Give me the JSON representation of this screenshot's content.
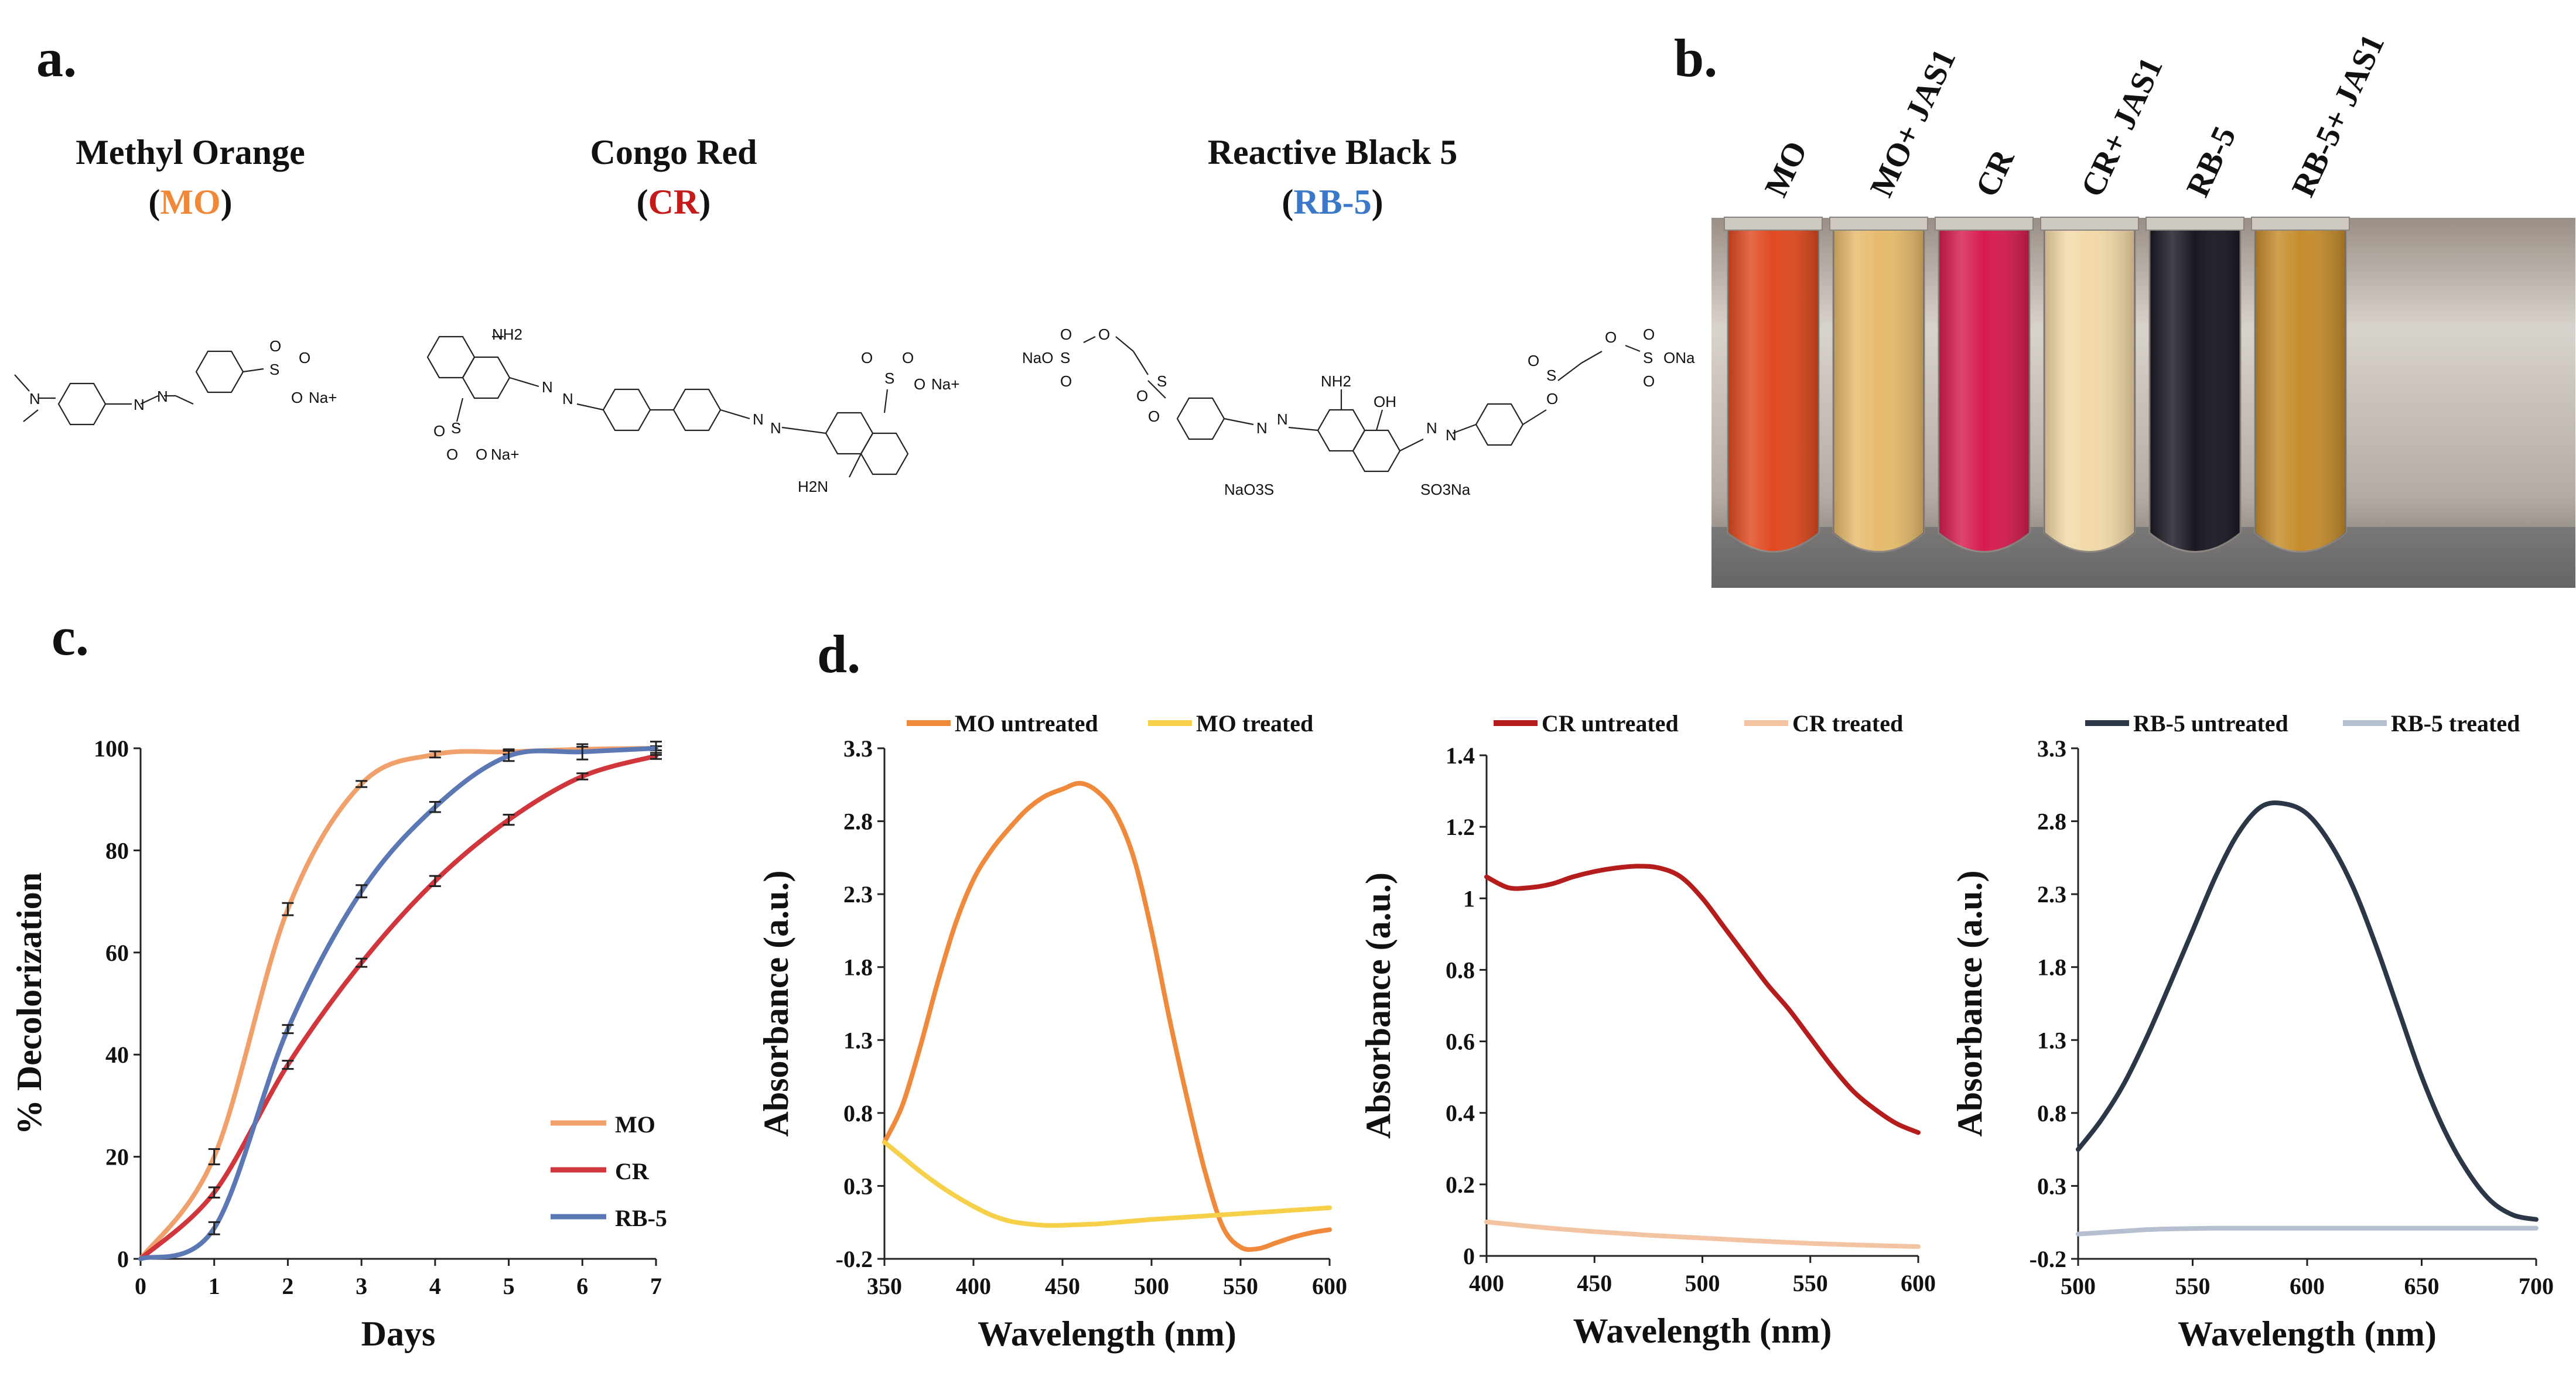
{
  "panel_labels": {
    "a": "a.",
    "b": "b.",
    "c": "c.",
    "d": "d."
  },
  "dyes": [
    {
      "name": "Methyl Orange",
      "abbr": "MO",
      "color": "#f0883a"
    },
    {
      "name": "Congo Red",
      "abbr": "CR",
      "color": "#c41a1a"
    },
    {
      "name": "Reactive Black 5",
      "abbr": "RB-5",
      "color": "#3c78c8"
    }
  ],
  "chem_atoms": {
    "mo": [
      "N",
      "N",
      "N",
      "S",
      "O",
      "O",
      "O",
      "Na+"
    ],
    "cr": [
      "NH2",
      "N",
      "N",
      "N",
      "N",
      "S",
      "O",
      "O",
      "O",
      "Na+",
      "S",
      "O",
      "O",
      "O",
      "Na+",
      "H2N"
    ],
    "rb5": [
      "NaO",
      "S",
      "O",
      "O",
      "O",
      "S",
      "O",
      "O",
      "N",
      "N",
      "NH2",
      "OH",
      "N",
      "N",
      "NaO3S",
      "SO3Na",
      "S",
      "O",
      "O",
      "O",
      "S",
      "O",
      "O",
      "ONa"
    ]
  },
  "tubes": [
    {
      "label": "MO",
      "label_color": "#f0883a",
      "fill_color": "#e0491f"
    },
    {
      "label": "MO+ JAS1",
      "label_color": "#f0883a",
      "fill_color": "#e6bb6c"
    },
    {
      "label": "CR",
      "label_color": "#c41a1a",
      "fill_color": "#d61c4f"
    },
    {
      "label": "CR+ JAS1",
      "label_color": "#c41a1a",
      "fill_color": "#f2d9a8"
    },
    {
      "label": "RB-5",
      "label_color": "#3c78c8",
      "fill_color": "#1a1822"
    },
    {
      "label": "RB-5+ JAS1",
      "label_color": "#3c78c8",
      "fill_color": "#c58c2c"
    }
  ],
  "chart_data": [
    {
      "type": "line",
      "panel": "c",
      "xlabel": "Days",
      "ylabel": "% Decolorization",
      "xlim": [
        0,
        7
      ],
      "ylim": [
        0,
        100
      ],
      "xticks": [
        "0",
        "1",
        "2",
        "3",
        "4",
        "5",
        "6",
        "7"
      ],
      "yticks": [
        "0",
        "20",
        "40",
        "60",
        "80",
        "100"
      ],
      "legend_position": "bottom-right",
      "x": [
        0,
        1,
        2,
        3,
        4,
        5,
        6,
        7
      ],
      "series": [
        {
          "name": "MO",
          "color": "#f0a06a",
          "values": [
            0,
            20,
            68.5,
            93,
            98.8,
            99.3,
            99.8,
            100
          ],
          "errors": [
            0,
            1.5,
            1.2,
            0.6,
            0.6,
            0.5,
            0.5,
            0.4
          ]
        },
        {
          "name": "CR",
          "color": "#d0363c",
          "values": [
            0,
            13,
            38,
            58,
            74,
            86,
            94.5,
            98.5
          ],
          "errors": [
            0,
            1.0,
            0.8,
            0.8,
            1.0,
            1.0,
            0.6,
            0.6
          ]
        },
        {
          "name": "RB-5",
          "color": "#5b78b4",
          "values": [
            0,
            6,
            45,
            72,
            88.5,
            98.5,
            99.3,
            100
          ],
          "errors": [
            0,
            1.2,
            0.8,
            1.2,
            1.0,
            1.0,
            1.5,
            1.3
          ]
        }
      ]
    },
    {
      "type": "line",
      "panel": "d-MO",
      "xlabel": "Wavelength (nm)",
      "ylabel": "Absorbance (a.u.)",
      "xlim": [
        350,
        600
      ],
      "ylim": [
        -0.2,
        3.3
      ],
      "xticks": [
        "350",
        "400",
        "450",
        "500",
        "550",
        "600"
      ],
      "yticks": [
        "-0.2",
        "0.3",
        "0.8",
        "1.3",
        "1.8",
        "2.3",
        "2.8",
        "3.3"
      ],
      "legend_position": "top",
      "series": [
        {
          "name": "MO untreated",
          "color": "#ef8a3c",
          "x": [
            350,
            360,
            370,
            380,
            390,
            400,
            410,
            420,
            430,
            440,
            450,
            460,
            470,
            480,
            490,
            500,
            510,
            520,
            530,
            540,
            550,
            560,
            570,
            580,
            590,
            600
          ],
          "values": [
            0.6,
            0.85,
            1.25,
            1.7,
            2.1,
            2.4,
            2.6,
            2.75,
            2.88,
            2.97,
            3.02,
            3.06,
            3.0,
            2.85,
            2.55,
            2.05,
            1.45,
            0.9,
            0.4,
            0.02,
            -0.12,
            -0.13,
            -0.09,
            -0.05,
            -0.02,
            0.0
          ]
        },
        {
          "name": "MO treated",
          "color": "#f7d04a",
          "x": [
            350,
            360,
            370,
            380,
            390,
            400,
            410,
            420,
            430,
            440,
            450,
            460,
            470,
            480,
            490,
            500,
            525,
            550,
            575,
            600
          ],
          "values": [
            0.6,
            0.5,
            0.4,
            0.31,
            0.23,
            0.16,
            0.1,
            0.06,
            0.04,
            0.03,
            0.03,
            0.035,
            0.04,
            0.05,
            0.06,
            0.07,
            0.09,
            0.11,
            0.13,
            0.15
          ]
        }
      ]
    },
    {
      "type": "line",
      "panel": "d-CR",
      "xlabel": "Wavelength (nm)",
      "ylabel": "Absorbance (a.u.)",
      "xlim": [
        400,
        600
      ],
      "ylim": [
        0,
        1.4
      ],
      "xticks": [
        "400",
        "450",
        "500",
        "550",
        "600"
      ],
      "yticks": [
        "0",
        "0.2",
        "0.4",
        "0.6",
        "0.8",
        "1",
        "1.2",
        "1.4"
      ],
      "legend_position": "top",
      "series": [
        {
          "name": "CR untreated",
          "color": "#b51d1d",
          "x": [
            400,
            410,
            420,
            430,
            440,
            450,
            460,
            470,
            480,
            490,
            500,
            510,
            520,
            530,
            540,
            550,
            560,
            570,
            580,
            590,
            600
          ],
          "values": [
            1.06,
            1.03,
            1.03,
            1.04,
            1.06,
            1.075,
            1.085,
            1.09,
            1.085,
            1.06,
            1.0,
            0.92,
            0.84,
            0.76,
            0.69,
            0.61,
            0.53,
            0.46,
            0.41,
            0.37,
            0.345
          ]
        },
        {
          "name": "CR treated",
          "color": "#f3c4a2",
          "x": [
            400,
            425,
            450,
            475,
            500,
            525,
            550,
            575,
            600
          ],
          "values": [
            0.095,
            0.08,
            0.068,
            0.058,
            0.05,
            0.042,
            0.035,
            0.03,
            0.026
          ]
        }
      ]
    },
    {
      "type": "line",
      "panel": "d-RB5",
      "xlabel": "Wavelength (nm)",
      "ylabel": "Absorbance (a.u.)",
      "xlim": [
        500,
        700
      ],
      "ylim": [
        -0.2,
        3.3
      ],
      "xticks": [
        "500",
        "550",
        "600",
        "650",
        "700"
      ],
      "yticks": [
        "-0.2",
        "0.3",
        "0.8",
        "1.3",
        "1.8",
        "2.3",
        "2.8",
        "3.3"
      ],
      "legend_position": "top",
      "series": [
        {
          "name": "RB-5 untreated",
          "color": "#2b3646",
          "x": [
            500,
            510,
            520,
            530,
            540,
            550,
            560,
            570,
            580,
            590,
            600,
            610,
            620,
            630,
            640,
            650,
            660,
            670,
            680,
            690,
            700
          ],
          "values": [
            0.55,
            0.75,
            1.0,
            1.32,
            1.68,
            2.05,
            2.42,
            2.72,
            2.9,
            2.92,
            2.85,
            2.65,
            2.35,
            1.95,
            1.5,
            1.05,
            0.68,
            0.4,
            0.2,
            0.1,
            0.07
          ]
        },
        {
          "name": "RB-5 treated",
          "color": "#b5bfcf",
          "x": [
            500,
            510,
            520,
            530,
            540,
            560,
            580,
            600,
            650,
            700
          ],
          "values": [
            -0.03,
            -0.02,
            -0.01,
            0.0,
            0.005,
            0.01,
            0.01,
            0.01,
            0.01,
            0.01
          ]
        }
      ]
    }
  ]
}
